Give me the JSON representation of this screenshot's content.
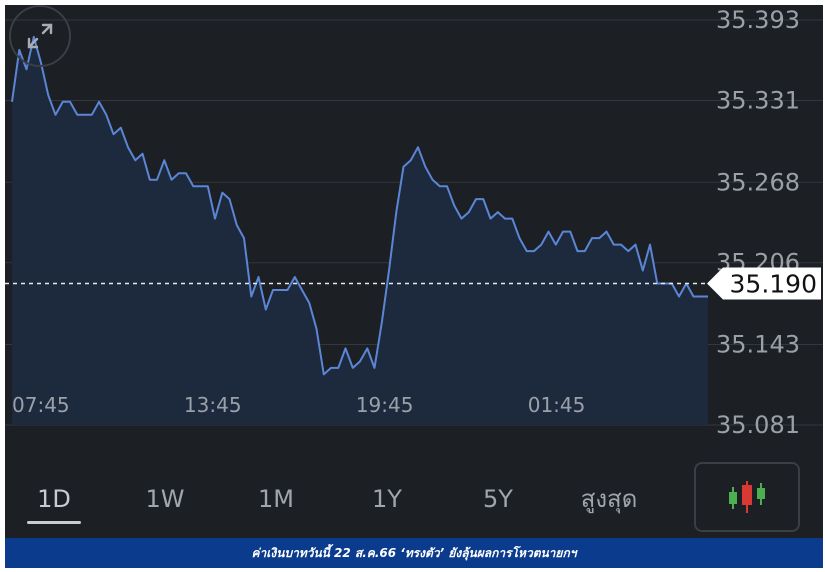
{
  "chart_data": {
    "type": "area",
    "x_tick_labels": [
      "07:45",
      "13:45",
      "19:45",
      "01:45"
    ],
    "y_tick_labels": [
      "35.393",
      "35.331",
      "35.268",
      "35.206",
      "35.143",
      "35.081"
    ],
    "ylim": [
      35.081,
      35.393
    ],
    "current_value": "35.190",
    "values": [
      35.33,
      35.37,
      35.355,
      35.38,
      35.36,
      35.335,
      35.32,
      35.33,
      35.33,
      35.32,
      35.32,
      35.32,
      35.33,
      35.32,
      35.305,
      35.31,
      35.295,
      35.285,
      35.29,
      35.27,
      35.27,
      35.285,
      35.27,
      35.275,
      35.275,
      35.265,
      35.265,
      35.265,
      35.24,
      35.26,
      35.255,
      35.235,
      35.225,
      35.18,
      35.195,
      35.17,
      35.185,
      35.185,
      35.185,
      35.195,
      35.185,
      35.175,
      35.155,
      35.12,
      35.125,
      35.125,
      35.14,
      35.125,
      35.13,
      35.14,
      35.125,
      35.16,
      35.2,
      35.245,
      35.28,
      35.285,
      35.295,
      35.28,
      35.27,
      35.265,
      35.265,
      35.25,
      35.24,
      35.245,
      35.255,
      35.255,
      35.24,
      35.245,
      35.24,
      35.24,
      35.225,
      35.215,
      35.215,
      35.22,
      35.23,
      35.22,
      35.23,
      35.23,
      35.215,
      35.215,
      35.225,
      35.225,
      35.23,
      35.22,
      35.22,
      35.215,
      35.22,
      35.2,
      35.22,
      35.19,
      35.19,
      35.19,
      35.18,
      35.19,
      35.18,
      35.18,
      35.18
    ],
    "reference_line": 35.19,
    "grid": true,
    "line_color": "#5b86d6",
    "fill_color": "#1d2a3d"
  },
  "ranges": [
    "1D",
    "1W",
    "1M",
    "1Y",
    "5Y",
    "สูงสุด"
  ],
  "active_range": "1D",
  "caption": "ค่าเงินบาทวันนี้ 22 ส.ค.66 ‘ทรงตัว’ ยังลุ้นผลการโหวตนายกฯ",
  "colors": {
    "background": "#1c1f24",
    "caption_bar": "#0b3b8c",
    "candle_red": "#d63a33",
    "candle_green": "#4caf50"
  },
  "icons": {
    "expand": "expand-arrows-icon",
    "chart_type": "candlestick-icon"
  }
}
